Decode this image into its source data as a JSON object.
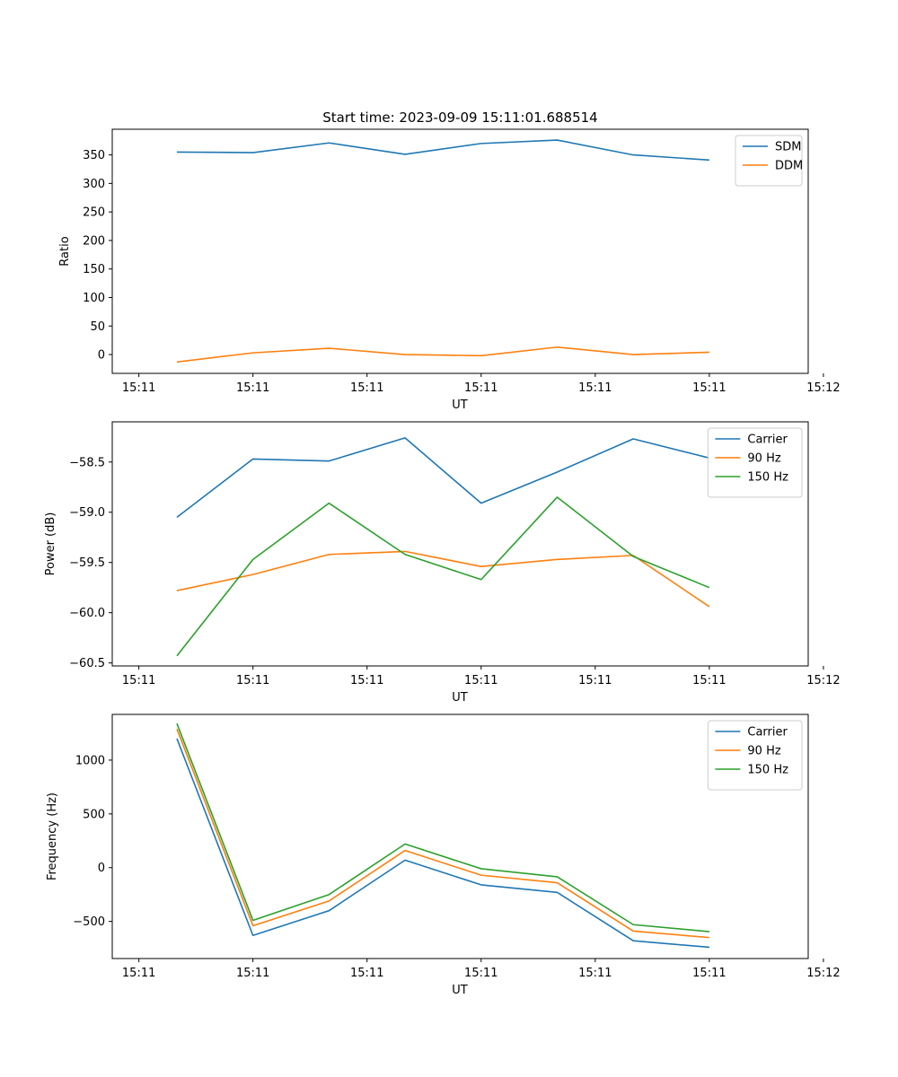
{
  "chart_data": [
    {
      "type": "line",
      "title": "Start time: 2023-09-09 15:11:01.688514",
      "xlabel": "UT",
      "ylabel": "Ratio",
      "xlim": [
        -0.35,
        8.8
      ],
      "ylim": [
        -33,
        395
      ],
      "x": [
        0.5,
        1.5,
        2.5,
        3.5,
        4.5,
        5.5,
        6.5,
        7.5
      ],
      "x_tick_positions": [
        0,
        1.5,
        3,
        4.5,
        6,
        7.5,
        9
      ],
      "x_tick_labels": [
        "15:11",
        "15:11",
        "15:11",
        "15:11",
        "15:11",
        "15:11",
        "15:12"
      ],
      "y_ticks": [
        0,
        50,
        100,
        150,
        200,
        250,
        300,
        350
      ],
      "y_tick_labels": [
        "0",
        "50",
        "100",
        "150",
        "200",
        "250",
        "300",
        "350"
      ],
      "legend": "top-right",
      "series": [
        {
          "name": "SDM",
          "color": "#1f77b4",
          "values": [
            355,
            354,
            371,
            351,
            370,
            376,
            350,
            341
          ]
        },
        {
          "name": "DDM",
          "color": "#ff7f0e",
          "values": [
            -13,
            3,
            11,
            0,
            -2,
            13,
            0,
            4
          ]
        }
      ]
    },
    {
      "type": "line",
      "title": "",
      "xlabel": "UT",
      "ylabel": "Power (dB)",
      "xlim": [
        -0.35,
        8.8
      ],
      "ylim": [
        -60.53,
        -58.1
      ],
      "x": [
        0.5,
        1.5,
        2.5,
        3.5,
        4.5,
        5.5,
        6.5,
        7.5
      ],
      "x_tick_positions": [
        0,
        1.5,
        3,
        4.5,
        6,
        7.5,
        9
      ],
      "x_tick_labels": [
        "15:11",
        "15:11",
        "15:11",
        "15:11",
        "15:11",
        "15:11",
        "15:12"
      ],
      "y_ticks": [
        -60.5,
        -60.0,
        -59.5,
        -59.0,
        -58.5
      ],
      "y_tick_labels": [
        "−60.5",
        "−60.0",
        "−59.5",
        "−59.0",
        "−58.5"
      ],
      "legend": "top-right",
      "series": [
        {
          "name": "Carrier",
          "color": "#1f77b4",
          "values": [
            -59.05,
            -58.47,
            -58.49,
            -58.26,
            -58.91,
            -58.6,
            -58.27,
            -58.46
          ]
        },
        {
          "name": "90 Hz",
          "color": "#ff7f0e",
          "values": [
            -59.78,
            -59.62,
            -59.42,
            -59.39,
            -59.54,
            -59.47,
            -59.43,
            -59.94
          ]
        },
        {
          "name": "150 Hz",
          "color": "#2ca02c",
          "values": [
            -60.43,
            -59.47,
            -58.91,
            -59.42,
            -59.67,
            -58.85,
            -59.44,
            -59.75
          ]
        }
      ]
    },
    {
      "type": "line",
      "title": "",
      "xlabel": "UT",
      "ylabel": "Frequency (Hz)",
      "xlim": [
        -0.35,
        8.8
      ],
      "ylim": [
        -845,
        1425
      ],
      "x": [
        0.5,
        1.5,
        2.5,
        3.5,
        4.5,
        5.5,
        6.5,
        7.5
      ],
      "x_tick_positions": [
        0,
        1.5,
        3,
        4.5,
        6,
        7.5,
        9
      ],
      "x_tick_labels": [
        "15:11",
        "15:11",
        "15:11",
        "15:11",
        "15:11",
        "15:11",
        "15:12"
      ],
      "y_ticks": [
        -500,
        0,
        500,
        1000
      ],
      "y_tick_labels": [
        "−500",
        "0",
        "500",
        "1000"
      ],
      "legend": "top-right",
      "series": [
        {
          "name": "Carrier",
          "color": "#1f77b4",
          "values": [
            1200,
            -630,
            -400,
            70,
            -160,
            -230,
            -680,
            -740
          ]
        },
        {
          "name": "90 Hz",
          "color": "#ff7f0e",
          "values": [
            1290,
            -540,
            -310,
            160,
            -70,
            -140,
            -590,
            -650
          ]
        },
        {
          "name": "150 Hz",
          "color": "#2ca02c",
          "values": [
            1340,
            -490,
            -250,
            220,
            -10,
            -85,
            -530,
            -595
          ]
        }
      ]
    }
  ]
}
